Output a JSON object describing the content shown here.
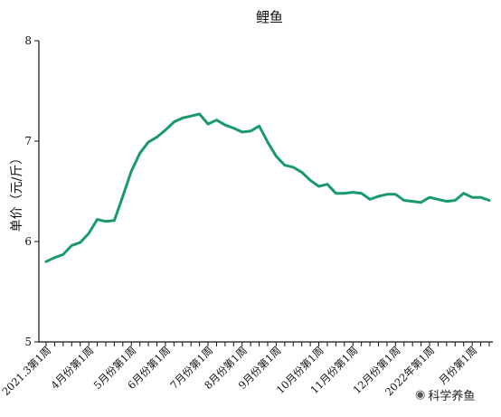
{
  "watermark": {
    "icon": "wechat-icon",
    "text": "科学养鱼"
  },
  "chart_data": {
    "type": "line",
    "title": "鲤鱼",
    "xlabel": "",
    "ylabel": "单价（元/斤）",
    "ylim": [
      5,
      8
    ],
    "yticks": [
      5,
      6,
      7,
      8
    ],
    "grid": false,
    "color": "#1a9a6a",
    "x_tick_labels": [
      {
        "label": "2021.3第1周",
        "index": 0
      },
      {
        "label": "4月份第1周",
        "index": 5
      },
      {
        "label": "5月份第1周",
        "index": 10
      },
      {
        "label": "6月份第1周",
        "index": 14
      },
      {
        "label": "7月份第1周",
        "index": 19
      },
      {
        "label": "8月份第1周",
        "index": 23
      },
      {
        "label": "9月份第1周",
        "index": 27
      },
      {
        "label": "10月份第1周",
        "index": 32
      },
      {
        "label": "11月份第1周",
        "index": 36
      },
      {
        "label": "12月份第1周",
        "index": 41
      },
      {
        "label": "2022年第1周",
        "index": 45
      },
      {
        "label": "月份第1周",
        "index": 50
      }
    ],
    "series": [
      {
        "values": [
          5.8,
          5.84,
          5.87,
          5.96,
          5.99,
          6.08,
          6.22,
          6.2,
          6.21,
          6.45,
          6.7,
          6.88,
          6.99,
          7.04,
          7.11,
          7.19,
          7.23,
          7.25,
          7.27,
          7.17,
          7.21,
          7.16,
          7.13,
          7.09,
          7.1,
          7.15,
          6.99,
          6.85,
          6.76,
          6.74,
          6.69,
          6.61,
          6.55,
          6.57,
          6.48,
          6.48,
          6.49,
          6.48,
          6.42,
          6.45,
          6.47,
          6.47,
          6.41,
          6.4,
          6.39,
          6.44,
          6.42,
          6.4,
          6.41,
          6.48,
          6.44,
          6.44,
          6.41
        ]
      }
    ]
  }
}
